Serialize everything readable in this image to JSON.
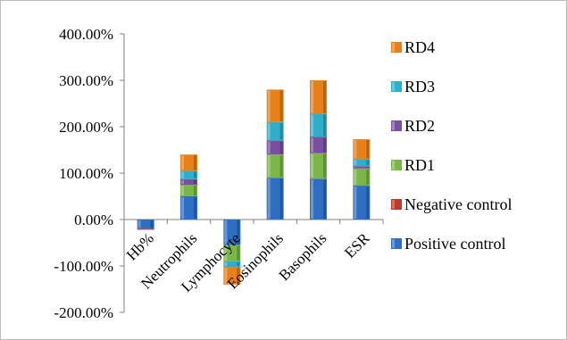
{
  "chart_data": {
    "type": "bar",
    "stacked": true,
    "title": "",
    "xlabel": "",
    "ylabel": "",
    "ylim": [
      -200,
      400
    ],
    "y_tick_labels": [
      "-200.00%",
      "-100.00%",
      "0.00%",
      "100.00%",
      "200.00%",
      "300.00%",
      "400.00%"
    ],
    "y_tick_values": [
      -200,
      -100,
      0,
      100,
      200,
      300,
      400
    ],
    "grid": false,
    "legend_placement": "right",
    "categories": [
      "Hb%",
      "Neutrophils",
      "Lymphocyte",
      "Eosinophils",
      "Basophils",
      "ESR"
    ],
    "series": [
      {
        "name": "Positive control",
        "color": "#2e6fc4",
        "values": [
          -20,
          50,
          -55,
          90,
          88,
          73
        ]
      },
      {
        "name": "Negative control",
        "color": "#c0392b",
        "values": [
          -2,
          0,
          0,
          0,
          0,
          0
        ]
      },
      {
        "name": "RD1",
        "color": "#7ab648",
        "values": [
          0,
          25,
          -35,
          50,
          55,
          37
        ]
      },
      {
        "name": "RD2",
        "color": "#7b4fa0",
        "values": [
          0,
          12,
          0,
          30,
          35,
          5
        ]
      },
      {
        "name": "RD3",
        "color": "#2eaecb",
        "values": [
          0,
          18,
          -12,
          40,
          50,
          15
        ]
      },
      {
        "name": "RD4",
        "color": "#e8801a",
        "values": [
          0,
          35,
          -38,
          70,
          72,
          43
        ]
      }
    ]
  }
}
